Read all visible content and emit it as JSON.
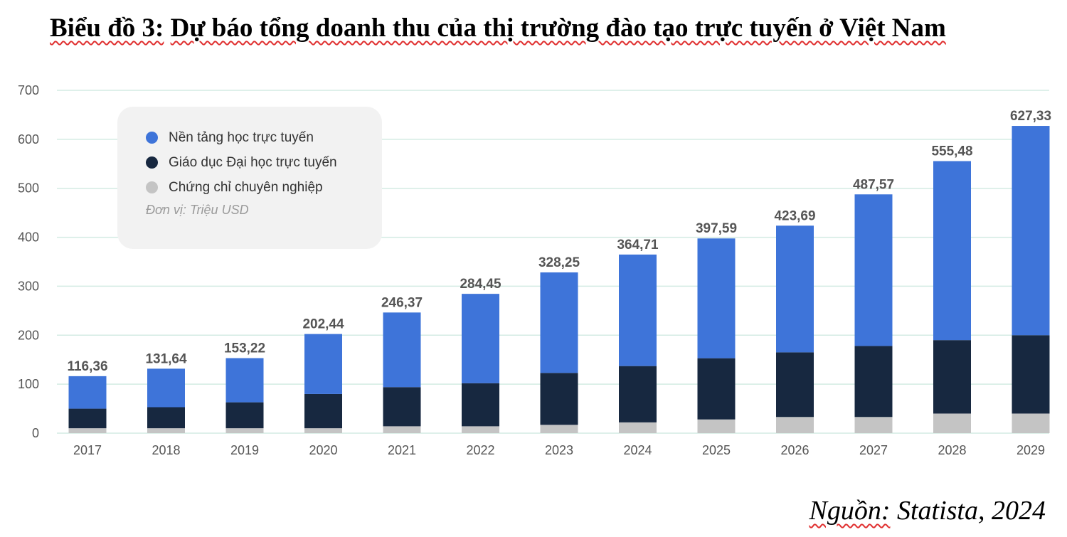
{
  "title_prefix": "Biểu đồ 3:",
  "title_rest": "Dự báo tổng doanh thu của thị trường đào tạo trực tuyến ở Việt Nam",
  "source_prefix": "Nguồn:",
  "source_rest": "Statista, 2024",
  "colors": {
    "online_platforms": "#3e74d9",
    "online_higher_education": "#172840",
    "professional_certificates": "#c4c4c4",
    "grid": "#d3ebe3",
    "axis_text": "#555555",
    "total_label": "#555555"
  },
  "chart_data": {
    "type": "bar",
    "stacked": true,
    "categories": [
      "2017",
      "2018",
      "2019",
      "2020",
      "2021",
      "2022",
      "2023",
      "2024",
      "2025",
      "2026",
      "2027",
      "2028",
      "2029"
    ],
    "series": [
      {
        "name": "Chứng chỉ chuyên nghiệp",
        "color": "#c4c4c4",
        "values": [
          10,
          10,
          10,
          10,
          14,
          14,
          17,
          22,
          28,
          33,
          33,
          40,
          40
        ]
      },
      {
        "name": "Giáo dục Đại học trực tuyến",
        "color": "#172840",
        "values": [
          40,
          43,
          53,
          70,
          80,
          88,
          106,
          115,
          125,
          132,
          145,
          150,
          160
        ]
      },
      {
        "name": "Nền tảng học trực tuyến",
        "color": "#3e74d9",
        "values": [
          66.36,
          78.64,
          90.22,
          122.44,
          152.37,
          182.45,
          205.25,
          227.71,
          244.59,
          258.69,
          309.57,
          365.48,
          427.33
        ]
      }
    ],
    "totals": [
      "116,36",
      "131,64",
      "153,22",
      "202,44",
      "246,37",
      "284,45",
      "328,25",
      "364,71",
      "397,59",
      "423,69",
      "487,57",
      "555,48",
      "627,33"
    ],
    "total_values": [
      116.36,
      131.64,
      153.22,
      202.44,
      246.37,
      284.45,
      328.25,
      364.71,
      397.59,
      423.69,
      487.57,
      555.48,
      627.33
    ],
    "yticks": [
      0,
      100,
      200,
      300,
      400,
      500,
      600,
      700
    ],
    "ylim": [
      0,
      700
    ],
    "grid": true,
    "legend_position": "top-left",
    "legend": [
      "Nền tảng học trực tuyến",
      "Giáo dục Đại học trực tuyến",
      "Chứng chỉ chuyên nghiệp"
    ],
    "unit_note": "Đơn vị: Triệu USD"
  }
}
